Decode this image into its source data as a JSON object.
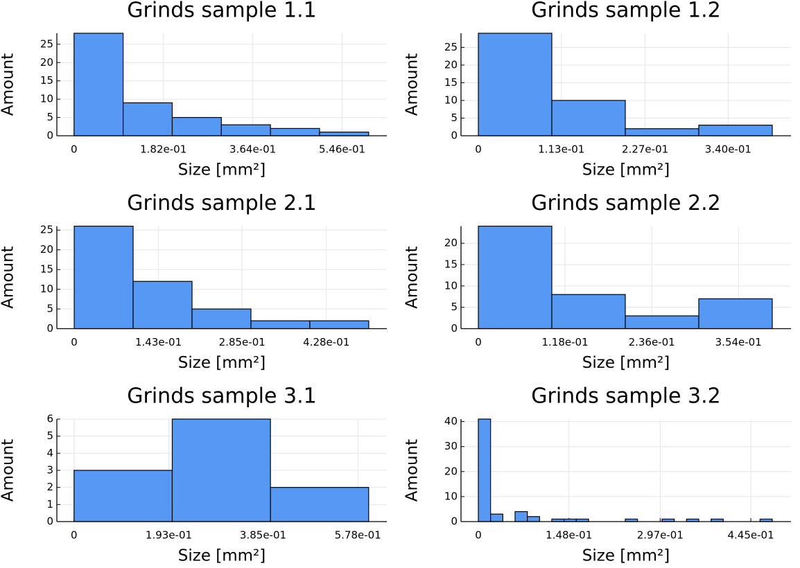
{
  "chart_data": [
    {
      "type": "histogram",
      "title": "Grinds sample 1.1",
      "xlabel": "Size [mm²]",
      "ylabel": "Amount",
      "bins": [
        0,
        0.1,
        0.2,
        0.3,
        0.4,
        0.5,
        0.6
      ],
      "counts": [
        28,
        9,
        5,
        3,
        2,
        1
      ],
      "color": "#5599f5",
      "xlim": [
        -0.035,
        0.637
      ],
      "ylim": [
        0,
        28
      ],
      "xticks": [
        0,
        {
          "value": 0.182,
          "label": "1.82e-01"
        },
        {
          "value": 0.364,
          "label": "3.64e-01"
        },
        {
          "value": 0.546,
          "label": "5.46e-01"
        }
      ],
      "yticks": [
        0,
        5,
        10,
        15,
        20,
        25
      ],
      "grid": true
    },
    {
      "type": "histogram",
      "title": "Grinds sample 1.2",
      "xlabel": "Size [mm²]",
      "ylabel": "Amount",
      "bins": [
        0,
        0.1,
        0.2,
        0.3,
        0.4
      ],
      "counts": [
        29,
        10,
        2,
        3
      ],
      "color": "#5599f5",
      "xlim": [
        -0.0236,
        0.4255
      ],
      "ylim": [
        0,
        29
      ],
      "xticks": [
        0,
        {
          "value": 0.113,
          "label": "1.13e-01"
        },
        {
          "value": 0.227,
          "label": "2.27e-01"
        },
        {
          "value": 0.34,
          "label": "3.40e-01"
        }
      ],
      "yticks": [
        0,
        5,
        10,
        15,
        20,
        25
      ],
      "grid": true
    },
    {
      "type": "histogram",
      "title": "Grinds sample 2.1",
      "xlabel": "Size [mm²]",
      "ylabel": "Amount",
      "bins": [
        0,
        0.1,
        0.2,
        0.3,
        0.4,
        0.5
      ],
      "counts": [
        26,
        12,
        5,
        2,
        2
      ],
      "color": "#5599f5",
      "xlim": [
        -0.0295,
        0.5307
      ],
      "ylim": [
        0,
        26
      ],
      "xticks": [
        0,
        {
          "value": 0.143,
          "label": "1.43e-01"
        },
        {
          "value": 0.285,
          "label": "2.85e-01"
        },
        {
          "value": 0.428,
          "label": "4.28e-01"
        }
      ],
      "yticks": [
        0,
        5,
        10,
        15,
        20,
        25
      ],
      "grid": true
    },
    {
      "type": "histogram",
      "title": "Grinds sample 2.2",
      "xlabel": "Size [mm²]",
      "ylabel": "Amount",
      "bins": [
        0,
        0.1,
        0.2,
        0.3,
        0.4
      ],
      "counts": [
        24,
        8,
        3,
        7
      ],
      "color": "#5599f5",
      "xlim": [
        -0.0236,
        0.4255
      ],
      "ylim": [
        0,
        24
      ],
      "xticks": [
        0,
        {
          "value": 0.118,
          "label": "1.18e-01"
        },
        {
          "value": 0.236,
          "label": "2.36e-01"
        },
        {
          "value": 0.354,
          "label": "3.54e-01"
        }
      ],
      "yticks": [
        0,
        5,
        10,
        15,
        20
      ],
      "grid": true
    },
    {
      "type": "histogram",
      "title": "Grinds sample 3.1",
      "xlabel": "Size [mm²]",
      "ylabel": "Amount",
      "bins": [
        0,
        0.2,
        0.4,
        0.6
      ],
      "counts": [
        3,
        6,
        2
      ],
      "color": "#5599f5",
      "xlim": [
        -0.035,
        0.637
      ],
      "ylim": [
        0,
        6
      ],
      "xticks": [
        0,
        {
          "value": 0.193,
          "label": "1.93e-01"
        },
        {
          "value": 0.385,
          "label": "3.85e-01"
        },
        {
          "value": 0.578,
          "label": "5.78e-01"
        }
      ],
      "yticks": [
        0,
        1,
        2,
        3,
        4,
        5,
        6
      ],
      "grid": true
    },
    {
      "type": "histogram",
      "title": "Grinds sample 3.2",
      "xlabel": "Size [mm²]",
      "ylabel": "Amount",
      "bins": [
        0,
        0.02,
        0.04,
        0.06,
        0.08,
        0.1,
        0.12,
        0.14,
        0.16,
        0.18,
        0.2,
        0.22,
        0.24,
        0.26,
        0.28,
        0.3,
        0.32,
        0.34,
        0.36,
        0.38,
        0.4,
        0.42,
        0.44,
        0.46,
        0.48
      ],
      "counts": [
        41,
        3,
        0,
        4,
        2,
        0,
        1,
        1,
        1,
        0,
        0,
        0,
        1,
        0,
        0,
        1,
        0,
        1,
        0,
        1,
        0,
        0,
        0,
        1
      ],
      "color": "#5599f5",
      "xlim": [
        -0.0283,
        0.5106
      ],
      "ylim": [
        0,
        41
      ],
      "xticks": [
        0,
        {
          "value": 0.148,
          "label": "1.48e-01"
        },
        {
          "value": 0.297,
          "label": "2.97e-01"
        },
        {
          "value": 0.445,
          "label": "4.45e-01"
        }
      ],
      "yticks": [
        0,
        10,
        20,
        30,
        40
      ],
      "grid": true
    }
  ]
}
